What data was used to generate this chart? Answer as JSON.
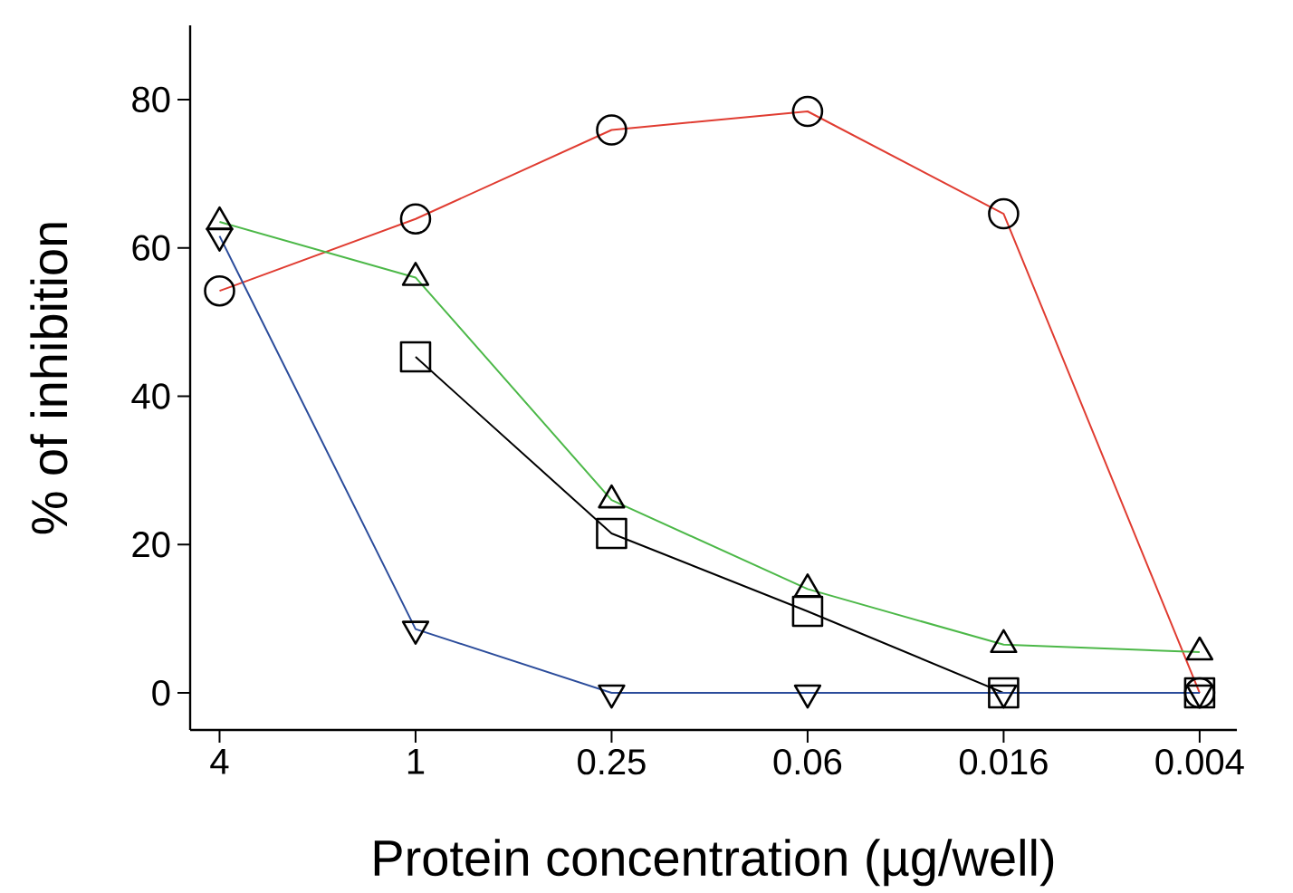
{
  "chart_data": {
    "type": "line",
    "xlabel": "Protein concentration (µg/well)",
    "ylabel": "% of inhibition",
    "categories": [
      "4",
      "1",
      "0.25",
      "0.06",
      "0.016",
      "0.004"
    ],
    "series": [
      {
        "color": "#e03c31",
        "marker": "circle",
        "values": [
          54.2,
          63.9,
          75.9,
          78.4,
          64.6,
          0
        ]
      },
      {
        "color": "#4cb848",
        "marker": "triangle",
        "values": [
          63.5,
          56,
          26,
          14,
          6.5,
          5.5
        ]
      },
      {
        "color": "#000000",
        "marker": "square",
        "values": [
          null,
          45.3,
          21.5,
          11,
          0,
          0
        ]
      },
      {
        "color": "#2b4c9b",
        "marker": "triangle down",
        "values": [
          61.6,
          8.6,
          0,
          0,
          0,
          0
        ]
      }
    ],
    "ylim": [
      -5,
      90
    ],
    "yticks": [
      0,
      20,
      40,
      60,
      80
    ],
    "grid": false,
    "line_style": "solid"
  }
}
